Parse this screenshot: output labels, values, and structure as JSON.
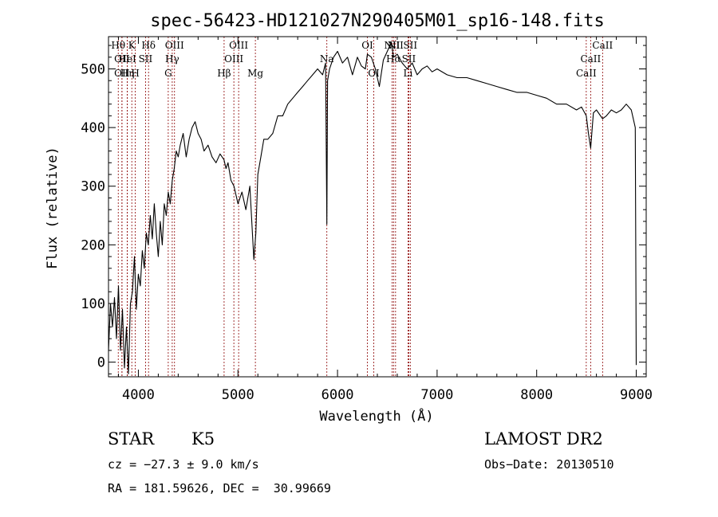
{
  "chart_data": {
    "type": "line",
    "title": "spec-56423-HD121027N290405M01_sp16-148.fits",
    "xlabel": "Wavelength (Å)",
    "ylabel": "Flux (relative)",
    "xlim": [
      3700,
      9100
    ],
    "ylim": [
      -25,
      555
    ],
    "x_ticks": [
      4000,
      5000,
      6000,
      7000,
      8000,
      9000
    ],
    "y_ticks": [
      0,
      100,
      200,
      300,
      400,
      500
    ],
    "grid": false,
    "legend": "none",
    "line_color": "#000000",
    "marker_line_color": "#8b0000",
    "series": [
      {
        "x": [
          3700,
          3720,
          3740,
          3760,
          3780,
          3800,
          3820,
          3840,
          3860,
          3880,
          3900,
          3920,
          3940,
          3960,
          3980,
          4000,
          4020,
          4040,
          4060,
          4080,
          4100,
          4120,
          4140,
          4160,
          4180,
          4200,
          4220,
          4240,
          4260,
          4280,
          4300,
          4320,
          4340,
          4360,
          4380,
          4400,
          4420,
          4450,
          4480,
          4510,
          4540,
          4570,
          4600,
          4630,
          4660,
          4700,
          4740,
          4780,
          4820,
          4860,
          4880,
          4900,
          4930,
          4960,
          5000,
          5040,
          5080,
          5120,
          5160,
          5180,
          5200,
          5230,
          5260,
          5300,
          5350,
          5400,
          5450,
          5500,
          5550,
          5600,
          5650,
          5700,
          5750,
          5800,
          5850,
          5880,
          5893,
          5900,
          5920,
          5960,
          6000,
          6050,
          6100,
          6150,
          6200,
          6240,
          6280,
          6300,
          6340,
          6380,
          6420,
          6460,
          6500,
          6540,
          6563,
          6600,
          6650,
          6700,
          6750,
          6800,
          6850,
          6900,
          6950,
          7000,
          7100,
          7200,
          7300,
          7400,
          7500,
          7600,
          7700,
          7800,
          7900,
          8000,
          8100,
          8200,
          8300,
          8400,
          8450,
          8498,
          8520,
          8542,
          8570,
          8600,
          8662,
          8700,
          8750,
          8800,
          8850,
          8900,
          8950,
          8990,
          9000
        ],
        "y": [
          20,
          100,
          60,
          110,
          40,
          130,
          20,
          90,
          -10,
          60,
          -20,
          100,
          120,
          180,
          90,
          150,
          130,
          190,
          160,
          220,
          200,
          250,
          210,
          270,
          220,
          180,
          240,
          200,
          270,
          250,
          290,
          270,
          310,
          330,
          360,
          350,
          370,
          390,
          350,
          380,
          400,
          410,
          390,
          380,
          360,
          370,
          350,
          340,
          355,
          345,
          330,
          340,
          310,
          300,
          270,
          290,
          260,
          300,
          175,
          220,
          320,
          350,
          380,
          380,
          390,
          420,
          420,
          440,
          450,
          460,
          470,
          480,
          490,
          500,
          490,
          510,
          235,
          480,
          500,
          520,
          530,
          510,
          520,
          490,
          520,
          505,
          500,
          525,
          520,
          500,
          470,
          515,
          530,
          545,
          520,
          525,
          510,
          500,
          510,
          490,
          500,
          505,
          495,
          500,
          490,
          485,
          485,
          480,
          475,
          470,
          465,
          460,
          460,
          455,
          450,
          440,
          440,
          430,
          435,
          420,
          390,
          365,
          425,
          430,
          415,
          420,
          430,
          425,
          430,
          440,
          430,
          400,
          -5
        ]
      }
    ],
    "line_markers": [
      {
        "x": 3798,
        "label": "Hθ",
        "row": 0
      },
      {
        "x": 3835,
        "label": "OII",
        "row": 1
      },
      {
        "x": 3835,
        "label": "OII",
        "row": 2
      },
      {
        "x": 3889,
        "label": "Hη",
        "row": 2
      },
      {
        "x": 3889,
        "label": "HeI",
        "row": 1
      },
      {
        "x": 3934,
        "label": "K",
        "row": 0
      },
      {
        "x": 3969,
        "label": "H",
        "row": 2
      },
      {
        "x": 4072,
        "label": "SII",
        "row": 1
      },
      {
        "x": 4102,
        "label": "Hδ",
        "row": 0
      },
      {
        "x": 4300,
        "label": "G",
        "row": 2
      },
      {
        "x": 4340,
        "label": "Hγ",
        "row": 1
      },
      {
        "x": 4363,
        "label": "OIII",
        "row": 0
      },
      {
        "x": 4861,
        "label": "Hβ",
        "row": 2
      },
      {
        "x": 4959,
        "label": "OIII",
        "row": 1
      },
      {
        "x": 5007,
        "label": "OIII",
        "row": 0
      },
      {
        "x": 5175,
        "label": "Mg",
        "row": 2
      },
      {
        "x": 5893,
        "label": "Na",
        "row": 1
      },
      {
        "x": 6300,
        "label": "OI",
        "row": 0
      },
      {
        "x": 6364,
        "label": "OI",
        "row": 2
      },
      {
        "x": 6548,
        "label": "NII",
        "row": 0
      },
      {
        "x": 6563,
        "label": "Hα",
        "row": 1
      },
      {
        "x": 6583,
        "label": "NII",
        "row": 0
      },
      {
        "x": 6708,
        "label": "Li",
        "row": 2
      },
      {
        "x": 6716,
        "label": "SII",
        "row": 1
      },
      {
        "x": 6731,
        "label": "SII",
        "row": 0
      },
      {
        "x": 8498,
        "label": "CaII",
        "row": 2
      },
      {
        "x": 8542,
        "label": "CaII",
        "row": 1
      },
      {
        "x": 8662,
        "label": "CaII",
        "row": 0
      }
    ]
  },
  "info": {
    "object_type": "STAR",
    "subclass": "K5",
    "survey": "LAMOST DR2",
    "cz": "cz = −27.3 ± 9.0 km/s",
    "obs_date": "Obs−Date: 20130510",
    "coords": "RA = 181.59626, DEC =  30.99669"
  }
}
